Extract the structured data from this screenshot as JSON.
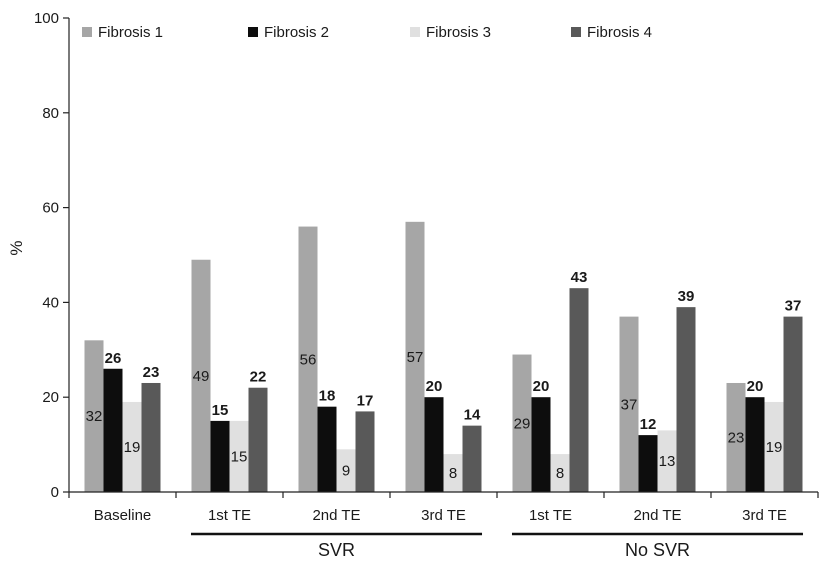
{
  "chart_data": {
    "type": "bar",
    "ylabel": "%",
    "ylim": [
      0,
      100
    ],
    "yticks": [
      0,
      20,
      40,
      60,
      80,
      100
    ],
    "grid": false,
    "legend_position": "top",
    "categories": [
      "Baseline",
      "1st TE",
      "2nd TE",
      "3rd TE",
      "1st TE",
      "2nd TE",
      "3rd TE"
    ],
    "groups": [
      {
        "label": "SVR",
        "from": 1,
        "to": 3
      },
      {
        "label": "No SVR",
        "from": 4,
        "to": 6
      }
    ],
    "series": [
      {
        "name": "Fibrosis 1",
        "color": "#a6a6a6",
        "values": [
          32,
          49,
          56,
          57,
          29,
          37,
          23
        ],
        "label_inside": true
      },
      {
        "name": "Fibrosis 2",
        "color": "#0d0d0d",
        "values": [
          26,
          15,
          18,
          20,
          20,
          12,
          20
        ],
        "label_inside": false
      },
      {
        "name": "Fibrosis 3",
        "color": "#e0e0e0",
        "values": [
          19,
          15,
          9,
          8,
          8,
          13,
          19
        ],
        "label_inside": true
      },
      {
        "name": "Fibrosis 4",
        "color": "#595959",
        "values": [
          23,
          22,
          17,
          14,
          43,
          39,
          37
        ],
        "label_inside": false
      }
    ]
  }
}
